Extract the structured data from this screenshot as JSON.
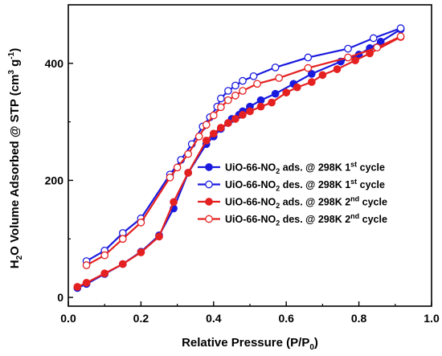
{
  "chart_data": {
    "type": "line",
    "title": "",
    "xlabel": {
      "main": "Relative Pressure (P/P",
      "sub": "0",
      "tail": ")"
    },
    "ylabel": {
      "pre": "H",
      "sub": "2",
      "mid": "O Volume Adsorbed @ STP (cm",
      "sup1": "3",
      "mid2": " g",
      "sup2": "-1",
      "tail": ")"
    },
    "xlim": [
      0.0,
      1.0
    ],
    "ylim": [
      -15,
      500
    ],
    "xticks": [
      0.0,
      0.2,
      0.4,
      0.6,
      0.8,
      1.0
    ],
    "xtick_labels": [
      "0.0",
      "0.2",
      "0.4",
      "0.6",
      "0.8",
      "1.0"
    ],
    "yticks": [
      0,
      200,
      400
    ],
    "ytick_labels": [
      "0",
      "200",
      "400"
    ],
    "legend_position": "center-right",
    "series": [
      {
        "name": {
          "pre": "UiO-66-NO",
          "sub": "2",
          "mid": " ads. @ 298K 1",
          "sup": "st",
          "tail": " cycle"
        },
        "color": "#1a1adf",
        "marker": "filled",
        "points": [
          [
            0.025,
            16
          ],
          [
            0.05,
            23
          ],
          [
            0.1,
            40
          ],
          [
            0.15,
            57
          ],
          [
            0.2,
            78
          ],
          [
            0.25,
            106
          ],
          [
            0.29,
            152
          ],
          [
            0.33,
            213
          ],
          [
            0.38,
            262
          ],
          [
            0.4,
            275
          ],
          [
            0.42,
            288
          ],
          [
            0.44,
            298
          ],
          [
            0.45,
            305
          ],
          [
            0.47,
            312
          ],
          [
            0.48,
            318
          ],
          [
            0.5,
            326
          ],
          [
            0.53,
            337
          ],
          [
            0.57,
            348
          ],
          [
            0.62,
            365
          ],
          [
            0.67,
            382
          ],
          [
            0.75,
            403
          ],
          [
            0.8,
            415
          ],
          [
            0.83,
            426
          ],
          [
            0.86,
            437
          ],
          [
            0.915,
            458
          ]
        ]
      },
      {
        "name": {
          "pre": "UiO-66-NO",
          "sub": "2",
          "mid": " des. @ 298K 1",
          "sup": "st",
          "tail": " cycle"
        },
        "color": "#1a1adf",
        "marker": "open",
        "points": [
          [
            0.915,
            460
          ],
          [
            0.84,
            443
          ],
          [
            0.77,
            425
          ],
          [
            0.66,
            410
          ],
          [
            0.57,
            393
          ],
          [
            0.51,
            378
          ],
          [
            0.48,
            370
          ],
          [
            0.46,
            362
          ],
          [
            0.44,
            353
          ],
          [
            0.42,
            340
          ],
          [
            0.41,
            326
          ],
          [
            0.39,
            308
          ],
          [
            0.37,
            292
          ],
          [
            0.34,
            262
          ],
          [
            0.31,
            235
          ],
          [
            0.28,
            210
          ],
          [
            0.2,
            135
          ],
          [
            0.15,
            110
          ],
          [
            0.1,
            80
          ],
          [
            0.05,
            62
          ]
        ]
      },
      {
        "name": {
          "pre": "UiO-66-NO",
          "sub": "2",
          "mid": " ads. @ 298K 2",
          "sup": "nd",
          "tail": " cycle"
        },
        "color": "#e52020",
        "marker": "filled",
        "points": [
          [
            0.025,
            18
          ],
          [
            0.05,
            25
          ],
          [
            0.1,
            41
          ],
          [
            0.15,
            57
          ],
          [
            0.2,
            77
          ],
          [
            0.25,
            104
          ],
          [
            0.29,
            163
          ],
          [
            0.33,
            213
          ],
          [
            0.38,
            268
          ],
          [
            0.4,
            280
          ],
          [
            0.42,
            290
          ],
          [
            0.44,
            298
          ],
          [
            0.46,
            305
          ],
          [
            0.48,
            312
          ],
          [
            0.5,
            318
          ],
          [
            0.53,
            326
          ],
          [
            0.56,
            333
          ],
          [
            0.6,
            350
          ],
          [
            0.63,
            359
          ],
          [
            0.67,
            368
          ],
          [
            0.7,
            380
          ],
          [
            0.74,
            390
          ],
          [
            0.79,
            405
          ],
          [
            0.83,
            417
          ],
          [
            0.915,
            445
          ]
        ]
      },
      {
        "name": {
          "pre": "UiO-66-NO",
          "sub": "2",
          "mid": " des. @ 298K 2",
          "sup": "nd",
          "tail": " cycle"
        },
        "color": "#e52020",
        "marker": "open",
        "points": [
          [
            0.915,
            446
          ],
          [
            0.85,
            427
          ],
          [
            0.77,
            410
          ],
          [
            0.66,
            392
          ],
          [
            0.58,
            375
          ],
          [
            0.52,
            365
          ],
          [
            0.48,
            353
          ],
          [
            0.46,
            345
          ],
          [
            0.44,
            337
          ],
          [
            0.42,
            325
          ],
          [
            0.4,
            311
          ],
          [
            0.38,
            295
          ],
          [
            0.36,
            275
          ],
          [
            0.33,
            245
          ],
          [
            0.3,
            222
          ],
          [
            0.28,
            205
          ],
          [
            0.2,
            128
          ],
          [
            0.15,
            100
          ],
          [
            0.1,
            72
          ],
          [
            0.05,
            55
          ]
        ]
      }
    ]
  }
}
